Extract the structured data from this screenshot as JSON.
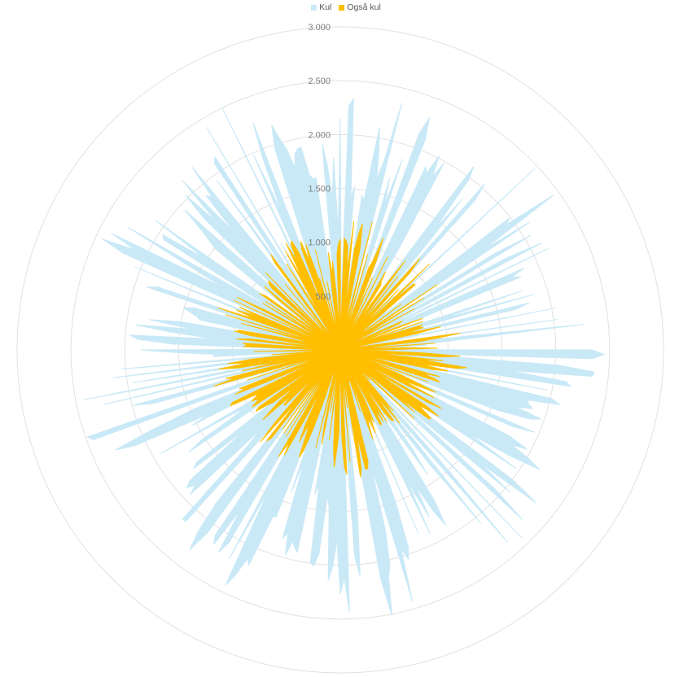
{
  "chart_data": {
    "type": "radar",
    "title": "",
    "legend": {
      "position": "top",
      "entries": [
        "Kul",
        "Også kul"
      ]
    },
    "radial_axis": {
      "min": 0,
      "max": 3000,
      "major_unit": 500,
      "tick_labels": [
        "500",
        "1.000",
        "1.500",
        "2.000",
        "2.500",
        "3.000"
      ]
    },
    "series_style": "filled",
    "grid": true,
    "point_count": 360,
    "series": [
      {
        "name": "Kul",
        "color": "#c9e9f7",
        "pattern": "spiky radial bursts; values mostly between 1000 and 2500, peaks near 2600"
      },
      {
        "name": "Også kul",
        "color": "#ffbf00",
        "pattern": "spiky radial bursts; values mostly between 500 and 1200, peaks near 1280"
      }
    ]
  }
}
